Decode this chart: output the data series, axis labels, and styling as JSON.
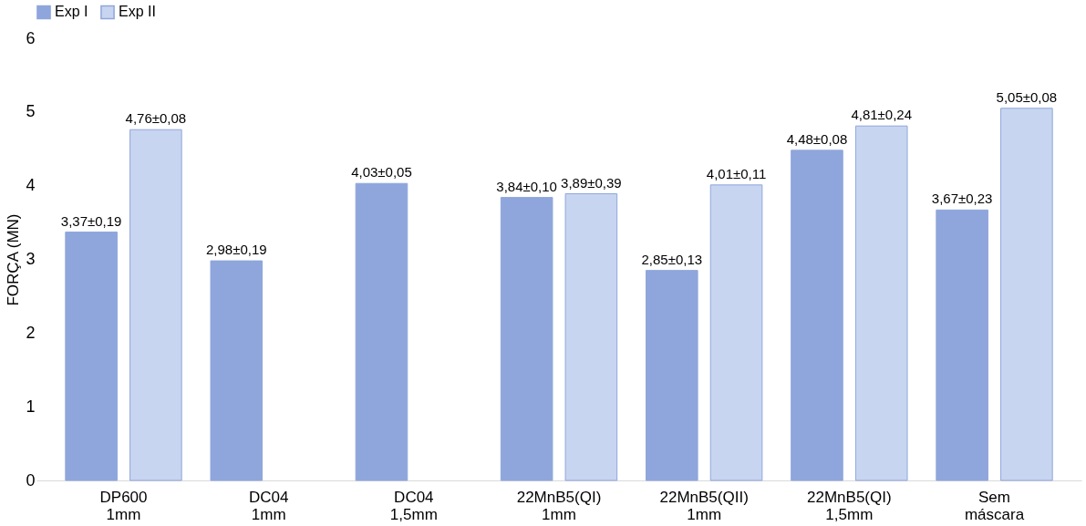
{
  "chart_data": {
    "type": "bar",
    "ylabel": "FORÇA (MN)",
    "categories": [
      "DP600\n1mm",
      "DC04\n1mm",
      "DC04\n1,5mm",
      "22MnB5(QI)\n1mm",
      "22MnB5(QII)\n1mm",
      "22MnB5(QI)\n1,5mm",
      "Sem\nmáscara"
    ],
    "series": [
      {
        "name": "Exp I",
        "color": "#8fa6dc",
        "values": [
          3.37,
          2.98,
          4.03,
          3.84,
          2.85,
          4.48,
          3.67
        ],
        "value_labels": [
          "3,37±0,19",
          "2,98±0,19",
          "4,03±0,05",
          "3,84±0,10",
          "2,85±0,13",
          "4,48±0,08",
          "3,67±0,23"
        ]
      },
      {
        "name": "Exp II",
        "color": "#c8d5f0",
        "values": [
          4.76,
          null,
          null,
          3.89,
          4.01,
          4.81,
          5.05
        ],
        "value_labels": [
          "4,76±0,08",
          null,
          null,
          "3,89±0,39",
          "4,01±0,11",
          "4,81±0,24",
          "5,05±0,08"
        ]
      }
    ],
    "ylim": [
      0,
      6
    ],
    "yticks": [
      0,
      1,
      2,
      3,
      4,
      5,
      6
    ],
    "grid": false,
    "legend": "top"
  }
}
